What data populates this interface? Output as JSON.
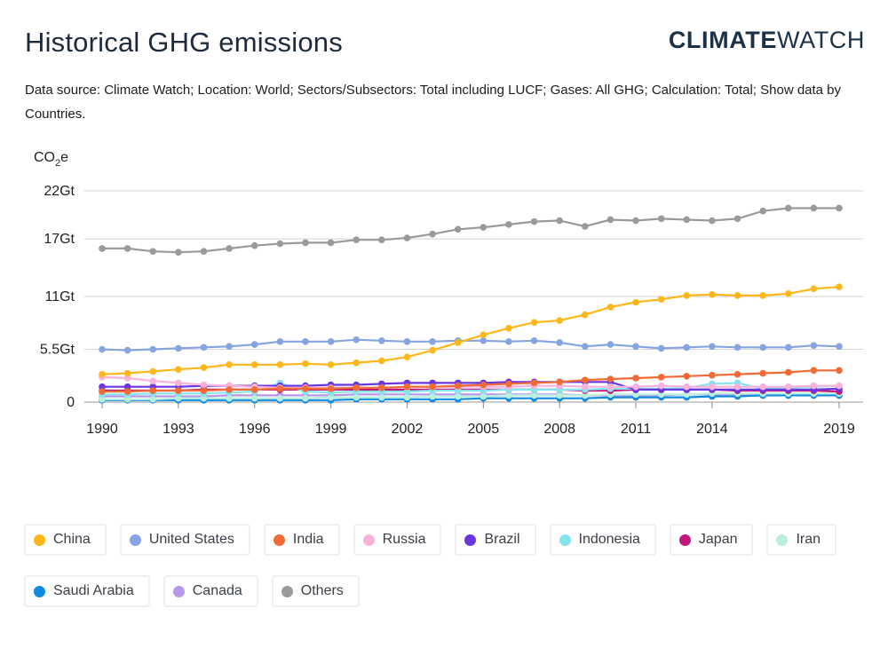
{
  "header": {
    "title": "Historical GHG emissions",
    "logo_bold": "CLIMATE",
    "logo_light": "WATCH",
    "source": "Data source: Climate Watch; Location: World; Sectors/Subsectors: Total including LUCF; Gases: All GHG; Calculation: Total; Show data by Countries."
  },
  "chart_data": {
    "type": "line",
    "title": "",
    "xlabel": "",
    "ylabel": "CO2e",
    "ylabel_main": "CO",
    "ylabel_sub": "2",
    "ylabel_tail": "e",
    "x": [
      1990,
      1991,
      1992,
      1993,
      1994,
      1995,
      1996,
      1997,
      1998,
      1999,
      2000,
      2001,
      2002,
      2003,
      2004,
      2005,
      2006,
      2007,
      2008,
      2009,
      2010,
      2011,
      2012,
      2013,
      2014,
      2015,
      2016,
      2017,
      2018,
      2019
    ],
    "x_ticks": [
      1990,
      1993,
      1996,
      1999,
      2002,
      2005,
      2008,
      2011,
      2014,
      2019
    ],
    "y_ticks": [
      0,
      5.5,
      11,
      17,
      22
    ],
    "y_tick_labels": [
      "0",
      "5.5Gt",
      "11Gt",
      "17Gt",
      "22Gt"
    ],
    "ylim": [
      0,
      22
    ],
    "grid": true,
    "series": [
      {
        "name": "Others",
        "color": "#9a9a9a",
        "values": [
          16.0,
          16.0,
          15.7,
          15.6,
          15.7,
          16.0,
          16.3,
          16.5,
          16.6,
          16.6,
          16.9,
          16.9,
          17.1,
          17.5,
          18.0,
          18.2,
          18.5,
          18.8,
          18.9,
          18.3,
          19.0,
          18.9,
          19.1,
          19.0,
          18.9,
          19.1,
          19.9,
          20.2,
          20.2,
          20.2
        ]
      },
      {
        "name": "China",
        "color": "#fdb71a",
        "values": [
          2.9,
          3.0,
          3.2,
          3.4,
          3.6,
          3.9,
          3.9,
          3.9,
          4.0,
          3.9,
          4.1,
          4.3,
          4.7,
          5.4,
          6.2,
          7.0,
          7.7,
          8.3,
          8.5,
          9.1,
          9.9,
          10.4,
          10.7,
          11.1,
          11.2,
          11.1,
          11.1,
          11.3,
          11.8,
          12.0
        ]
      },
      {
        "name": "United States",
        "color": "#86a4e0",
        "values": [
          5.5,
          5.4,
          5.5,
          5.6,
          5.7,
          5.8,
          6.0,
          6.3,
          6.3,
          6.3,
          6.5,
          6.4,
          6.3,
          6.3,
          6.4,
          6.4,
          6.3,
          6.4,
          6.2,
          5.8,
          6.0,
          5.8,
          5.6,
          5.7,
          5.8,
          5.7,
          5.7,
          5.7,
          5.9,
          5.8
        ]
      },
      {
        "name": "India",
        "color": "#f26b36",
        "values": [
          1.1,
          1.1,
          1.2,
          1.2,
          1.2,
          1.3,
          1.3,
          1.4,
          1.4,
          1.4,
          1.5,
          1.5,
          1.6,
          1.6,
          1.7,
          1.8,
          1.9,
          2.0,
          2.1,
          2.3,
          2.4,
          2.5,
          2.6,
          2.7,
          2.8,
          2.9,
          3.0,
          3.1,
          3.3,
          3.3
        ]
      },
      {
        "name": "Russia",
        "color": "#f9b2db",
        "values": [
          2.6,
          2.5,
          2.2,
          2.0,
          1.8,
          1.7,
          1.6,
          1.5,
          1.5,
          1.5,
          1.5,
          1.5,
          1.6,
          1.6,
          1.6,
          1.6,
          1.6,
          1.7,
          1.7,
          1.6,
          1.6,
          1.6,
          1.7,
          1.6,
          1.6,
          1.6,
          1.6,
          1.6,
          1.7,
          1.7
        ]
      },
      {
        "name": "Brazil",
        "color": "#6a36e0",
        "values": [
          1.6,
          1.6,
          1.6,
          1.6,
          1.7,
          1.7,
          1.7,
          1.7,
          1.7,
          1.8,
          1.8,
          1.9,
          2.0,
          2.0,
          2.0,
          2.0,
          2.1,
          2.1,
          2.1,
          2.1,
          2.1,
          1.3,
          1.3,
          1.3,
          1.3,
          1.3,
          1.3,
          1.3,
          1.3,
          1.4
        ]
      },
      {
        "name": "Indonesia",
        "color": "#86e4ef",
        "values": [
          0.8,
          0.8,
          0.9,
          0.9,
          0.9,
          1.0,
          1.1,
          2.0,
          1.1,
          1.0,
          1.1,
          1.1,
          1.1,
          1.2,
          1.2,
          1.2,
          1.3,
          1.3,
          1.3,
          1.3,
          1.4,
          1.4,
          1.4,
          1.5,
          1.9,
          2.0,
          1.4,
          1.5,
          1.6,
          1.7
        ]
      },
      {
        "name": "Japan",
        "color": "#c2187a",
        "values": [
          1.2,
          1.2,
          1.2,
          1.2,
          1.3,
          1.3,
          1.3,
          1.3,
          1.3,
          1.3,
          1.3,
          1.3,
          1.3,
          1.3,
          1.3,
          1.3,
          1.3,
          1.3,
          1.3,
          1.2,
          1.2,
          1.3,
          1.3,
          1.3,
          1.3,
          1.2,
          1.2,
          1.2,
          1.2,
          1.1
        ]
      },
      {
        "name": "Iran",
        "color": "#b9efdb",
        "values": [
          0.3,
          0.3,
          0.3,
          0.4,
          0.4,
          0.4,
          0.4,
          0.4,
          0.4,
          0.5,
          0.5,
          0.5,
          0.5,
          0.6,
          0.6,
          0.6,
          0.7,
          0.7,
          0.7,
          0.7,
          0.8,
          0.8,
          0.8,
          0.8,
          0.9,
          0.9,
          0.9,
          0.9,
          0.9,
          0.9
        ]
      },
      {
        "name": "Saudi Arabia",
        "color": "#0f8be0",
        "values": [
          0.2,
          0.2,
          0.2,
          0.2,
          0.2,
          0.2,
          0.2,
          0.2,
          0.2,
          0.2,
          0.3,
          0.3,
          0.3,
          0.3,
          0.3,
          0.4,
          0.4,
          0.4,
          0.4,
          0.4,
          0.5,
          0.5,
          0.5,
          0.5,
          0.6,
          0.6,
          0.7,
          0.7,
          0.7,
          0.7
        ]
      },
      {
        "name": "Canada",
        "color": "#b896ec",
        "values": [
          0.6,
          0.6,
          0.6,
          0.6,
          0.6,
          0.7,
          0.7,
          0.7,
          0.7,
          0.7,
          0.8,
          0.8,
          0.8,
          0.8,
          0.8,
          0.8,
          0.8,
          0.8,
          0.8,
          0.7,
          0.7,
          0.7,
          0.7,
          0.8,
          0.8,
          0.7,
          0.7,
          0.7,
          0.7,
          0.7
        ]
      }
    ]
  },
  "legend": {
    "rows": [
      [
        {
          "name": "China",
          "color": "#fdb71a"
        },
        {
          "name": "United States",
          "color": "#86a4e0"
        },
        {
          "name": "India",
          "color": "#f26b36"
        },
        {
          "name": "Russia",
          "color": "#f9b2db"
        },
        {
          "name": "Brazil",
          "color": "#6a36e0"
        },
        {
          "name": "Indonesia",
          "color": "#86e4ef"
        },
        {
          "name": "Japan",
          "color": "#c2187a"
        },
        {
          "name": "Iran",
          "color": "#b9efdb"
        }
      ],
      [
        {
          "name": "Saudi Arabia",
          "color": "#0f8be0"
        },
        {
          "name": "Canada",
          "color": "#b896ec"
        },
        {
          "name": "Others",
          "color": "#9a9a9a"
        }
      ]
    ]
  }
}
